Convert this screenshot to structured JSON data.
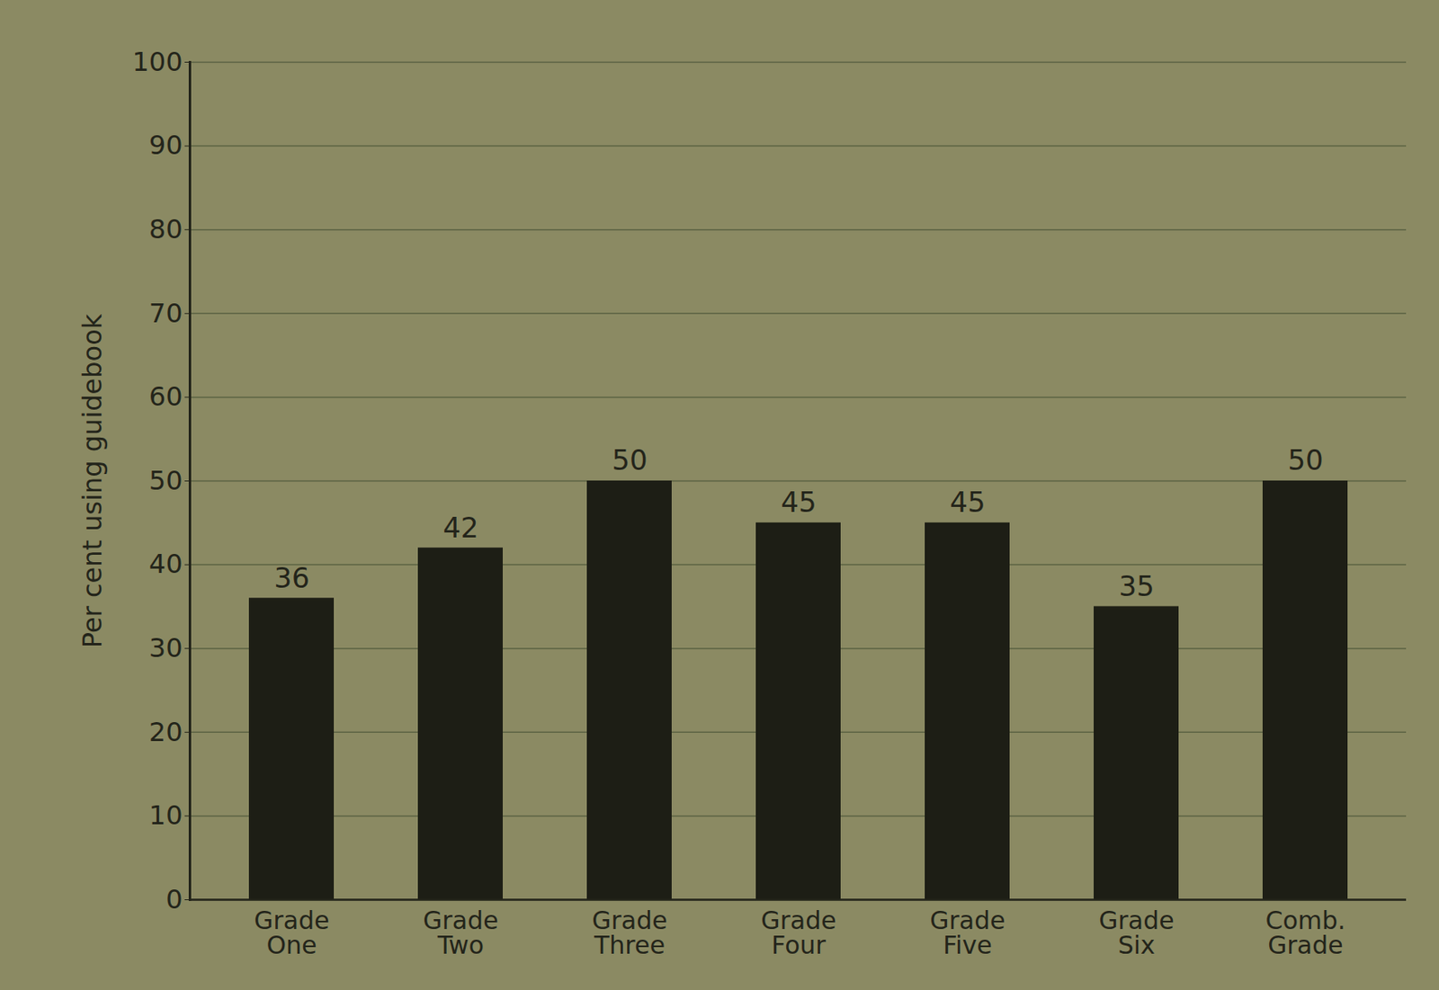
{
  "chart_data": {
    "type": "bar",
    "y_label": "Per cent using guidebook",
    "categories": [
      "Grade One",
      "Grade Two",
      "Grade Three",
      "Grade Four",
      "Grade Five",
      "Grade Six",
      "Comb. Grade"
    ],
    "values": [
      36,
      42,
      50,
      45,
      45,
      35,
      50
    ],
    "color": "#1d1e15",
    "ylim": [
      0,
      100
    ],
    "yticks": [
      0,
      10,
      20,
      30,
      40,
      50,
      60,
      70,
      80,
      90,
      100
    ],
    "grid": true,
    "data_labels": true
  }
}
